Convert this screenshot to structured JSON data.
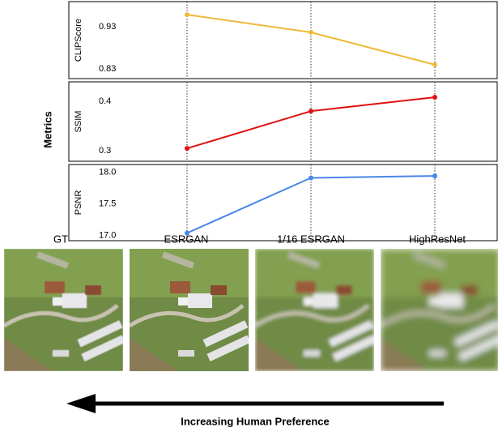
{
  "chart_data": [
    {
      "type": "line",
      "ylabel": "CLIPScore",
      "categories": [
        "ESRGAN",
        "1/16 ESRGAN",
        "HighResNet"
      ],
      "values": [
        0.959,
        0.917,
        0.84
      ],
      "color": "#f0b93a",
      "ylim": [
        0.807,
        0.99
      ],
      "yticks": [
        0.83,
        0.93
      ]
    },
    {
      "type": "line",
      "ylabel": "SSIM",
      "categories": [
        "ESRGAN",
        "1/16 ESRGAN",
        "HighResNet"
      ],
      "values": [
        0.305,
        0.38,
        0.408
      ],
      "color": "#e01010",
      "ylim": [
        0.279,
        0.439
      ],
      "yticks": [
        0.3,
        0.4
      ]
    },
    {
      "type": "line",
      "ylabel": "PSNR",
      "categories": [
        "ESRGAN",
        "1/16 ESRGAN",
        "HighResNet"
      ],
      "values": [
        17.04,
        17.91,
        17.94
      ],
      "color": "#4a86e8",
      "ylim": [
        16.92,
        18.12
      ],
      "yticks": [
        {
          "value": 17.0,
          "label": "17.0"
        },
        17.5,
        {
          "value": 18.0,
          "label": "18.0"
        }
      ]
    }
  ],
  "figure": {
    "ylabel": "Metrics",
    "image_labels": [
      "GT",
      "ESRGAN",
      "1/16 ESRGAN",
      "HighResNet"
    ],
    "arrow_label": "Increasing Human Preference"
  }
}
